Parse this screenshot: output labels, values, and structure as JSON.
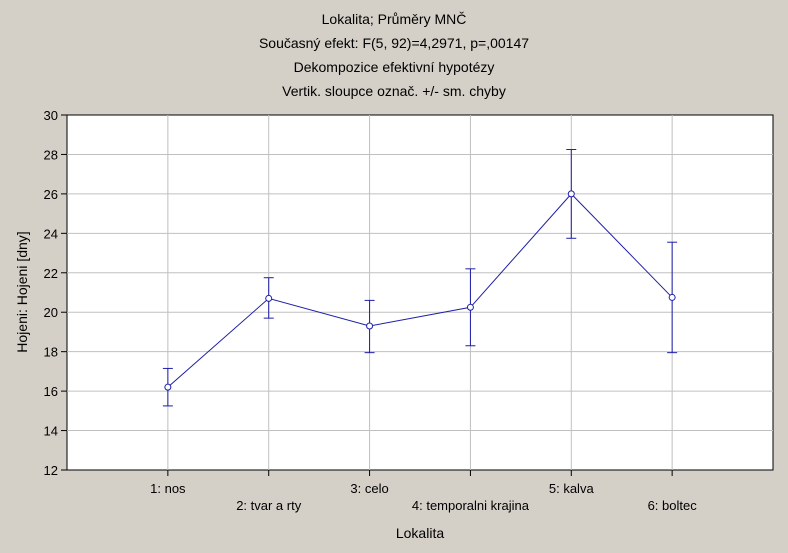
{
  "chart_data": {
    "type": "line",
    "title_lines": [
      "Lokalita; Průměry MNČ",
      "Současný efekt: F(5, 92)=4,2971, p=,00147",
      "Dekompozice efektivní hypotézy",
      "Vertik. sloupce označ. +/- sm. chyby"
    ],
    "xlabel": "Lokalita",
    "ylabel": "Hojeni: Hojeni [dny]",
    "ylim": [
      12,
      30
    ],
    "yticks": [
      12,
      14,
      16,
      18,
      20,
      22,
      24,
      26,
      28,
      30
    ],
    "grid": true,
    "categories": [
      "1: nos",
      "2: tvar a rty",
      "3: celo",
      "4: temporalni krajina",
      "5: kalva",
      "6: boltec"
    ],
    "series": [
      {
        "values": [
          16.2,
          20.7,
          19.3,
          20.25,
          26.0,
          20.75
        ],
        "err_low": [
          15.25,
          19.7,
          17.95,
          18.3,
          23.75,
          17.95
        ],
        "err_high": [
          17.15,
          21.75,
          20.6,
          22.2,
          28.25,
          23.55
        ]
      }
    ],
    "colors": {
      "series": "#1e1ea8",
      "grid": "#c0c0c0",
      "plot_bg": "#ffffff",
      "page_bg": "#d4d0c8"
    }
  }
}
